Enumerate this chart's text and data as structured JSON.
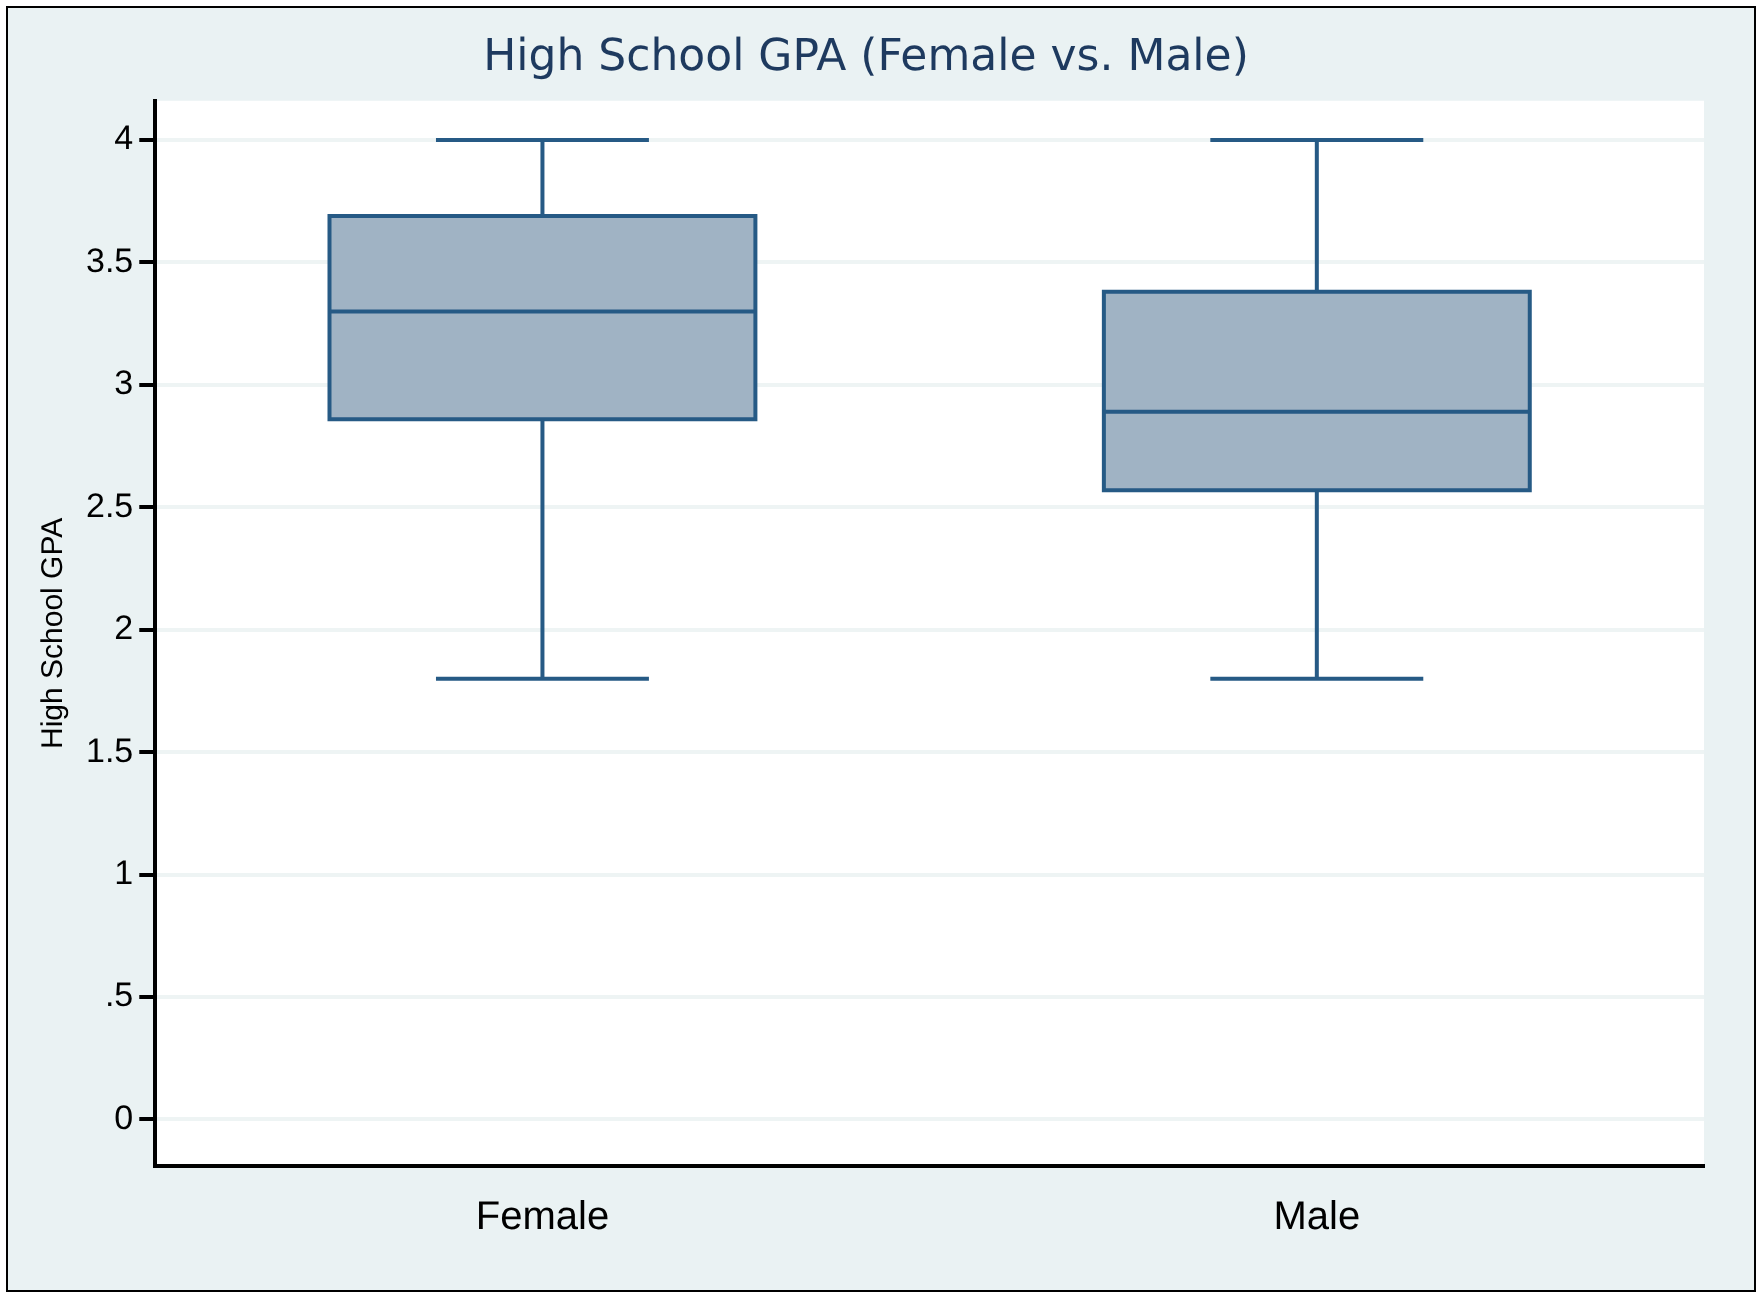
{
  "chart_data": {
    "type": "box",
    "title": "High School GPA (Female vs. Male)",
    "ylabel": "High School GPA",
    "categories": [
      "Female",
      "Male"
    ],
    "boxes": [
      {
        "low": 1.8,
        "q1": 2.86,
        "median": 3.3,
        "q3": 3.69,
        "high": 4
      },
      {
        "low": 1.8,
        "q1": 2.57,
        "median": 2.89,
        "q3": 3.38,
        "high": 4
      }
    ],
    "color": "#a0b3c4",
    "ylim": [
      -0.19,
      4.16
    ],
    "yticks": [
      0,
      {
        "value": 0.5,
        "label": ".5"
      },
      1,
      1.5,
      2,
      2.5,
      3,
      3.5,
      4
    ],
    "grid": "y",
    "legend": false
  }
}
